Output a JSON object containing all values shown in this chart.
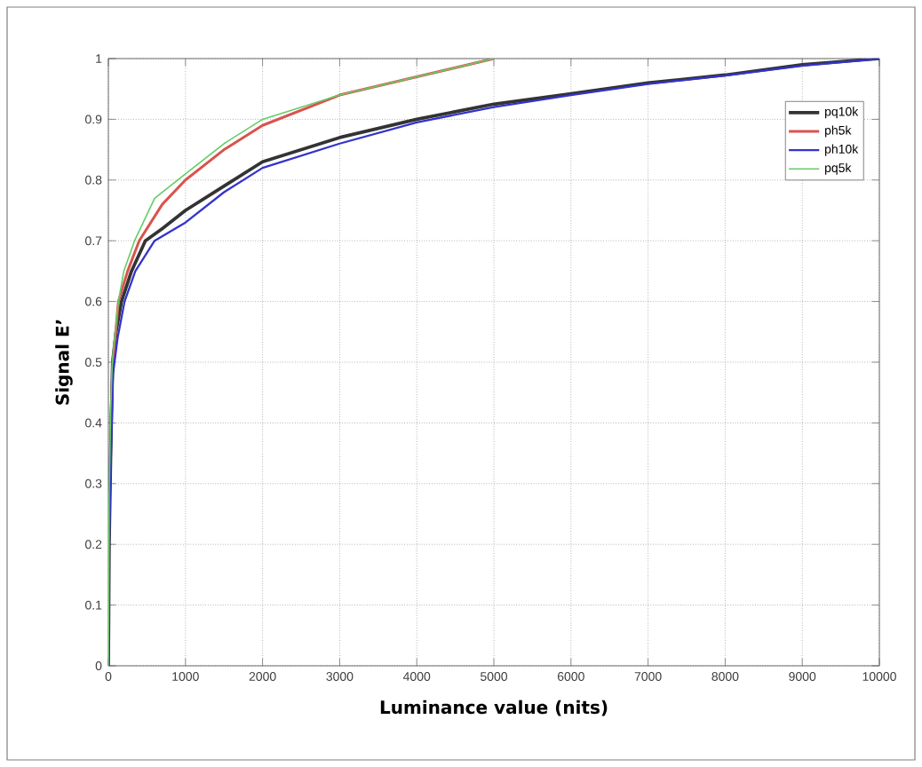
{
  "chart_data": {
    "type": "line",
    "xlabel": "Luminance value (nits)",
    "ylabel": "Signal E’",
    "xlim": [
      0,
      10000
    ],
    "ylim": [
      0,
      1
    ],
    "xticks": [
      0,
      1000,
      2000,
      3000,
      4000,
      5000,
      6000,
      7000,
      8000,
      9000,
      10000
    ],
    "yticks": [
      0,
      0.1,
      0.2,
      0.3,
      0.4,
      0.5,
      0.6,
      0.7,
      0.8,
      0.9,
      1
    ],
    "grid": true,
    "legend": "top right",
    "line_style": "solid",
    "marker": "none",
    "series": [
      {
        "name": "pq10k",
        "color": "#333333",
        "x": [
          0,
          10,
          30,
          55,
          100,
          170,
          300,
          480,
          700,
          1000,
          1500,
          2000,
          3000,
          4000,
          5000,
          6000,
          7000,
          8000,
          9000,
          10000
        ],
        "values": [
          0,
          0.2,
          0.35,
          0.5,
          0.55,
          0.6,
          0.65,
          0.7,
          0.72,
          0.75,
          0.79,
          0.83,
          0.87,
          0.9,
          0.925,
          0.942,
          0.96,
          0.973,
          0.99,
          1
        ]
      },
      {
        "name": "ph5k",
        "color": "#d9534f",
        "x": [
          30,
          60,
          130,
          250,
          400,
          700,
          1000,
          1500,
          2000,
          3000,
          4000,
          5000
        ],
        "values": [
          0.4,
          0.5,
          0.6,
          0.65,
          0.7,
          0.76,
          0.8,
          0.85,
          0.89,
          0.94,
          0.97,
          1
        ]
      },
      {
        "name": "ph10k",
        "color": "#3333cc",
        "x": [
          0,
          10,
          30,
          60,
          120,
          210,
          350,
          600,
          1000,
          1500,
          2000,
          3000,
          4000,
          5000,
          6000,
          7000,
          8000,
          9000,
          10000
        ],
        "values": [
          0,
          0.2,
          0.33,
          0.48,
          0.54,
          0.6,
          0.65,
          0.7,
          0.73,
          0.78,
          0.82,
          0.86,
          0.895,
          0.92,
          0.94,
          0.958,
          0.972,
          0.988,
          1
        ]
      },
      {
        "name": "pq5k",
        "color": "#66cc66",
        "x": [
          0,
          10,
          30,
          50,
          130,
          200,
          340,
          600,
          1000,
          1500,
          2000,
          3000,
          4000,
          5000
        ],
        "values": [
          0,
          0.28,
          0.42,
          0.5,
          0.6,
          0.65,
          0.7,
          0.77,
          0.81,
          0.86,
          0.9,
          0.94,
          0.97,
          1
        ]
      }
    ]
  }
}
